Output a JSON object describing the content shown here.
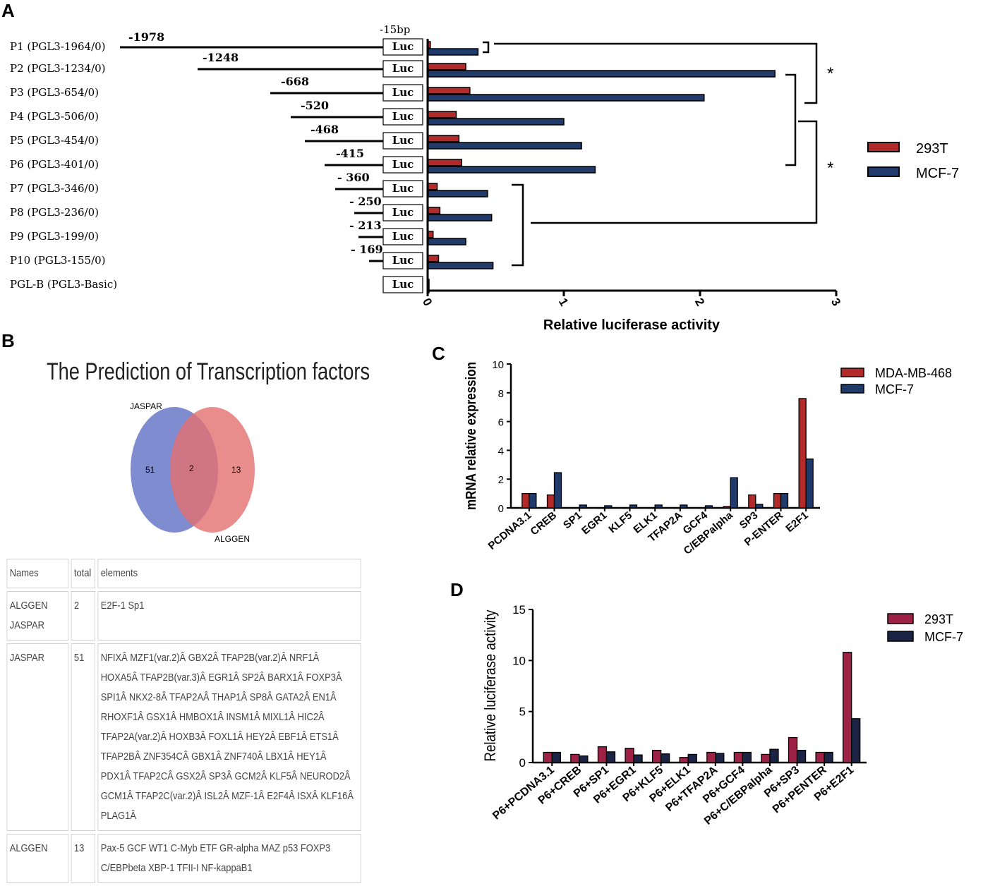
{
  "panels": {
    "a": "A",
    "b": "B",
    "c": "C",
    "d": "D"
  },
  "panelA": {
    "top_marker": "-15bp",
    "luc_label": "Luc",
    "constructs": [
      {
        "label": "P1 (PGL3-1964/0)",
        "pos": "-1978"
      },
      {
        "label": "P2 (PGL3-1234/0)",
        "pos": "-1248"
      },
      {
        "label": "P3 (PGL3-654/0)",
        "pos": "-668"
      },
      {
        "label": "P4 (PGL3-506/0)",
        "pos": "-520"
      },
      {
        "label": "P5 (PGL3-454/0)",
        "pos": "-468"
      },
      {
        "label": "P6 (PGL3-401/0)",
        "pos": "-415"
      },
      {
        "label": "P7 (PGL3-346/0)",
        "pos": "- 360"
      },
      {
        "label": "P8 (PGL3-236/0)",
        "pos": "- 250"
      },
      {
        "label": "P9 (PGL3-199/0)",
        "pos": "- 213"
      },
      {
        "label": "P10 (PGL3-155/0)",
        "pos": "- 169"
      },
      {
        "label": "PGL-B (PGL3-Basic)",
        "pos": ""
      }
    ],
    "significance": [
      "*",
      "*"
    ]
  },
  "panelB": {
    "title": "The Prediction of Transcription factors",
    "venn": {
      "left_label": "JASPAR",
      "right_label": "ALGGEN",
      "left_only": "51",
      "both": "2",
      "right_only": "13"
    },
    "table": {
      "headers": [
        "Names",
        "total",
        "elements"
      ],
      "rows": [
        {
          "name": "ALGGEN JASPAR",
          "total": "2",
          "elements": "E2F-1 Sp1"
        },
        {
          "name": "JASPAR",
          "total": "51",
          "elements": "NFIXÂ MZF1(var.2)Â GBX2Â TFAP2B(var.2)Â NRF1Â HOXA5Â TFAP2B(var.3)Â EGR1Â SP2Â BARX1Â FOXP3Â SPI1Â NKX2-8Â TFAP2AÂ THAP1Â SP8Â GATA2Â EN1Â RHOXF1Â GSX1Â HMBOX1Â INSM1Â MIXL1Â HIC2Â TFAP2A(var.2)Â HOXB3Â FOXL1Â HEY2Â EBF1Â ETS1Â TFAP2BÂ ZNF354CÂ GBX1Â ZNF740Â LBX1Â HEY1Â PDX1Â TFAP2CÂ GSX2Â SP3Â GCM2Â KLF5Â NEUROD2Â GCM1Â TFAP2C(var.2)Â ISL2Â MZF-1Â E2F4Â ISXÂ KLF16Â PLAG1Â"
        },
        {
          "name": "ALGGEN",
          "total": "13",
          "elements": "Pax-5 GCF WT1 C-Myb ETF GR-alpha MAZ p53 FOXP3 C/EBPbeta XBP-1 TFII-I NF-kappaB1"
        }
      ]
    }
  },
  "chart_data": [
    {
      "panel": "A",
      "type": "bar",
      "orientation": "horizontal",
      "xlabel": "Relative luciferase activity",
      "ylabel": "",
      "xlim": [
        0,
        3
      ],
      "ticks": [
        "0",
        "1",
        "2",
        "3"
      ],
      "categories": [
        "P1 (PGL3-1964/0)",
        "P2 (PGL3-1234/0)",
        "P3 (PGL3-654/0)",
        "P4 (PGL3-506/0)",
        "P5 (PGL3-454/0)",
        "P6 (PGL3-401/0)",
        "P7 (PGL3-346/0)",
        "P8 (PGL3-236/0)",
        "P9 (PGL3-199/0)",
        "P10 (PGL3-155/0)",
        "PGL-B (PGL3-Basic)"
      ],
      "series": [
        {
          "name": "293T",
          "color": "#b22a2a",
          "values": [
            0.02,
            0.28,
            0.31,
            0.21,
            0.23,
            0.25,
            0.07,
            0.09,
            0.04,
            0.08,
            0.01
          ]
        },
        {
          "name": "MCF-7",
          "color": "#1f3a6b",
          "values": [
            0.37,
            2.55,
            2.03,
            1.0,
            1.13,
            1.23,
            0.44,
            0.47,
            0.28,
            0.48,
            0.01
          ]
        }
      ]
    },
    {
      "panel": "C",
      "type": "bar",
      "ylabel": "mRNA relative expression",
      "xlabel": "",
      "ylim": [
        0,
        10
      ],
      "ticks": [
        "0",
        "2",
        "4",
        "6",
        "8",
        "10"
      ],
      "categories": [
        "PCDNA3.1",
        "CREB",
        "SP1",
        "EGR1",
        "KLF5",
        "ELK1",
        "TFAP2A",
        "GCF4",
        "C/EBPalpha",
        "SP3",
        "P-ENTER",
        "E2F1"
      ],
      "series": [
        {
          "name": "MDA-MB-468",
          "color": "#b22a2a",
          "values": [
            1.0,
            0.9,
            0.0,
            0.0,
            0.0,
            0.0,
            0.0,
            0.0,
            0.1,
            0.9,
            1.0,
            7.6
          ]
        },
        {
          "name": "MCF-7",
          "color": "#1f3a6b",
          "values": [
            1.0,
            2.45,
            0.2,
            0.15,
            0.2,
            0.2,
            0.2,
            0.15,
            2.1,
            0.25,
            1.0,
            3.4
          ]
        }
      ]
    },
    {
      "panel": "D",
      "type": "bar",
      "ylabel": "Relative luciferase activity",
      "xlabel": "",
      "ylim": [
        0,
        15
      ],
      "ticks": [
        "0",
        "5",
        "10",
        "15"
      ],
      "categories": [
        "P6+PCDNA3.1",
        "P6+CREB",
        "P6+SP1",
        "P6+EGR1",
        "P6+KLF5",
        "P6+ELK1",
        "P6+TFAP2A",
        "P6+GCF4",
        "P6+C/EBPalpha",
        "P6+SP3",
        "P6+PENTER",
        "P6+E2F1"
      ],
      "series": [
        {
          "name": "293T",
          "color": "#9e2146",
          "values": [
            1.0,
            0.8,
            1.55,
            1.4,
            1.2,
            0.5,
            1.0,
            1.0,
            0.8,
            2.45,
            1.0,
            10.8
          ]
        },
        {
          "name": "MCF-7",
          "color": "#1b2445",
          "values": [
            1.0,
            0.65,
            1.05,
            0.75,
            0.85,
            0.8,
            0.9,
            1.0,
            1.3,
            1.2,
            1.0,
            4.3
          ]
        }
      ]
    }
  ]
}
